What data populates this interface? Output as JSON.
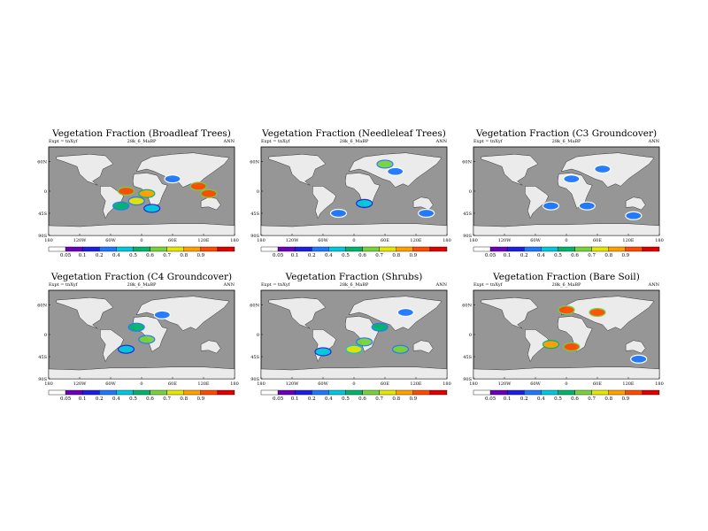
{
  "common": {
    "left_note": "Expt = tnXyf",
    "center_note": "28k_6_MaBP",
    "right_note": "ANN",
    "lon_ticks": [
      "180",
      "120W",
      "60W",
      "0",
      "60E",
      "120E",
      "180"
    ],
    "lat_ticks": [
      "60N",
      "0",
      "45S",
      "90S"
    ],
    "colorbar_levels": [
      "0.05",
      "0.1",
      "0.2",
      "0.4",
      "0.5",
      "0.6",
      "0.7",
      "0.8",
      "0.9"
    ],
    "colorbar_colors": [
      "#ffffff",
      "#6a00b8",
      "#1f1fe0",
      "#1e78ff",
      "#00c8dc",
      "#00b46e",
      "#78d23c",
      "#e6e600",
      "#ffa000",
      "#ff4b00",
      "#dc0000"
    ],
    "land_color": "#ebebeb",
    "ocean_color": "#969696"
  },
  "chart_data": [
    {
      "type": "heatmap",
      "title": "Vegetation Fraction (Broadleaf Trees)",
      "x_range": [
        -180,
        180
      ],
      "y_range": [
        -90,
        90
      ],
      "regions": [
        {
          "lon": -30,
          "lat": 0,
          "value": 0.95
        },
        {
          "lon": 10,
          "lat": -5,
          "value": 0.85
        },
        {
          "lon": -10,
          "lat": -20,
          "value": 0.7
        },
        {
          "lon": 60,
          "lat": 25,
          "value": 0.3
        },
        {
          "lon": 110,
          "lat": 10,
          "value": 0.95
        },
        {
          "lon": 130,
          "lat": -5,
          "value": 0.9
        },
        {
          "lon": -40,
          "lat": -30,
          "value": 0.5
        },
        {
          "lon": 20,
          "lat": -35,
          "value": 0.4
        }
      ]
    },
    {
      "type": "heatmap",
      "title": "Vegetation Fraction (Needleleaf Trees)",
      "x_range": [
        -180,
        180
      ],
      "y_range": [
        -90,
        90
      ],
      "regions": [
        {
          "lon": 60,
          "lat": 55,
          "value": 0.6
        },
        {
          "lon": 80,
          "lat": 40,
          "value": 0.3
        },
        {
          "lon": 20,
          "lat": -25,
          "value": 0.4
        },
        {
          "lon": -30,
          "lat": -45,
          "value": 0.35
        },
        {
          "lon": 140,
          "lat": -45,
          "value": 0.3
        }
      ]
    },
    {
      "type": "heatmap",
      "title": "Vegetation Fraction (C3 Groundcover)",
      "x_range": [
        -180,
        180
      ],
      "y_range": [
        -90,
        90
      ],
      "regions": [
        {
          "lon": 70,
          "lat": 45,
          "value": 0.3
        },
        {
          "lon": 10,
          "lat": 25,
          "value": 0.2
        },
        {
          "lon": -30,
          "lat": -30,
          "value": 0.35
        },
        {
          "lon": 40,
          "lat": -30,
          "value": 0.25
        },
        {
          "lon": 130,
          "lat": -50,
          "value": 0.3
        }
      ]
    },
    {
      "type": "heatmap",
      "title": "Vegetation Fraction (C4 Groundcover)",
      "x_range": [
        -180,
        180
      ],
      "y_range": [
        -90,
        90
      ],
      "regions": [
        {
          "lon": -10,
          "lat": 15,
          "value": 0.5
        },
        {
          "lon": 10,
          "lat": -10,
          "value": 0.6
        },
        {
          "lon": -30,
          "lat": -30,
          "value": 0.45
        },
        {
          "lon": 40,
          "lat": 40,
          "value": 0.3
        }
      ]
    },
    {
      "type": "heatmap",
      "title": "Vegetation Fraction (Shrubs)",
      "x_range": [
        -180,
        180
      ],
      "y_range": [
        -90,
        90
      ],
      "regions": [
        {
          "lon": 50,
          "lat": 15,
          "value": 0.5
        },
        {
          "lon": 20,
          "lat": -15,
          "value": 0.65
        },
        {
          "lon": 0,
          "lat": -30,
          "value": 0.75
        },
        {
          "lon": 90,
          "lat": -30,
          "value": 0.6
        },
        {
          "lon": -60,
          "lat": -35,
          "value": 0.4
        },
        {
          "lon": 100,
          "lat": 45,
          "value": 0.3
        }
      ]
    },
    {
      "type": "heatmap",
      "title": "Vegetation Fraction (Bare Soil)",
      "x_range": [
        -180,
        180
      ],
      "y_range": [
        -90,
        90
      ],
      "regions": [
        {
          "lon": 0,
          "lat": 50,
          "value": 0.95
        },
        {
          "lon": 60,
          "lat": 45,
          "value": 0.9
        },
        {
          "lon": 10,
          "lat": -25,
          "value": 0.95
        },
        {
          "lon": -30,
          "lat": -20,
          "value": 0.85
        },
        {
          "lon": 140,
          "lat": -50,
          "value": 0.3
        }
      ]
    }
  ]
}
